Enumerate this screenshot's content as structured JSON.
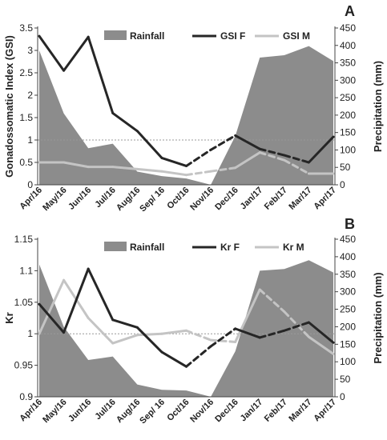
{
  "months": [
    "Apr/16",
    "May/16",
    "Jun/16",
    "Jul/16",
    "Aug/16",
    "Sep/ 16",
    "Oct/16",
    "Nov/16",
    "Dec/16",
    "Jan/17",
    "Feb/17",
    "Mar/17",
    "Apr/17"
  ],
  "colors": {
    "rainfall": "#8c8c8c",
    "female": "#262626",
    "male": "#c4c4c4",
    "reference": "#999999"
  },
  "chart_data": [
    {
      "type": "line",
      "panel_letter": "A",
      "title": "",
      "ylabel": "Gonadossomatic Index (GSI)",
      "y2label": "Precipitation (mm)",
      "ylim": [
        0,
        3.5
      ],
      "yticks": [
        "0",
        "0.5",
        "1",
        "1.5",
        "2",
        "2.5",
        "3",
        "3.5"
      ],
      "y2lim": [
        0,
        450
      ],
      "y2ticks": [
        "0",
        "50",
        "100",
        "150",
        "200",
        "250",
        "300",
        "350",
        "400",
        "450"
      ],
      "reference_line": 1,
      "legend": {
        "rainfall": "Rainfall",
        "female": "GSI F",
        "male": "GSI M"
      },
      "rainfall": [
        385,
        205,
        105,
        118,
        38,
        25,
        18,
        0,
        140,
        365,
        372,
        398,
        355
      ],
      "female": [
        3.32,
        2.55,
        3.3,
        1.6,
        1.2,
        0.6,
        0.42,
        0.78,
        1.1,
        0.8,
        0.66,
        0.5,
        1.07
      ],
      "male": [
        0.5,
        0.5,
        0.4,
        0.4,
        0.35,
        0.3,
        0.22,
        0.3,
        0.38,
        0.72,
        0.55,
        0.25,
        0.25
      ],
      "dashed_segments": [
        [
          6,
          8
        ],
        [
          9,
          11
        ]
      ]
    },
    {
      "type": "line",
      "panel_letter": "B",
      "title": "",
      "ylabel": "Kr",
      "y2label": "Precipitation (mm)",
      "ylim": [
        0.9,
        1.15
      ],
      "yticks": [
        "0.9",
        "0.95",
        "1",
        "1.05",
        "1.1",
        "1.15"
      ],
      "y2lim": [
        0,
        450
      ],
      "y2ticks": [
        "0",
        "50",
        "100",
        "150",
        "200",
        "250",
        "300",
        "350",
        "400",
        "450"
      ],
      "reference_line": 1,
      "legend": {
        "rainfall": "Rainfall",
        "female": "Kr F",
        "male": "Kr M"
      },
      "rainfall": [
        378,
        200,
        105,
        115,
        35,
        20,
        18,
        0,
        130,
        360,
        365,
        390,
        355
      ],
      "female": [
        1.047,
        1.002,
        1.103,
        1.022,
        1.01,
        0.971,
        0.948,
        0.98,
        1.008,
        0.994,
        1.005,
        1.018,
        0.986
      ],
      "male": [
        1.0,
        1.085,
        1.025,
        0.985,
        0.998,
        1.0,
        1.005,
        0.99,
        0.987,
        1.07,
        1.035,
        0.995,
        0.968
      ],
      "dashed_segments": [
        [
          6,
          8
        ],
        [
          9,
          11
        ]
      ]
    }
  ]
}
